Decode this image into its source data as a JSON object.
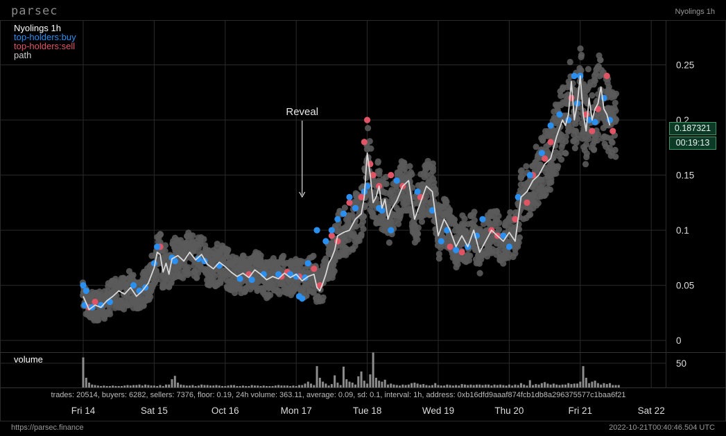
{
  "app": {
    "brand": "parsec",
    "top_right": "Nyolings 1h",
    "footer_url": "https://parsec.finance",
    "footer_timestamp": "2022-10-21T00:40:46.504 UTC"
  },
  "legend": {
    "title": "Nyolings 1h",
    "buy_label": "top-holders:buy",
    "sell_label": "top-holders:sell",
    "path_label": "path"
  },
  "annotation": "Reveal",
  "volume_label": "volume",
  "current_price": "0.187321",
  "countdown": "00:19:13",
  "stats_line": "trades: 20514,  buyers: 6282,  sellers: 7376,  floor: 0.19,  24h volume: 363.11,  average: 0.09,  sd: 0.1,  interval: 1h,  address: 0xb16dfd9aaaf874fcb1db8a296375577c1baa6f21",
  "colors": {
    "background": "#000000",
    "grid": "#2b2b2b",
    "trade_dot": "#5a5a5a",
    "buy": "#2b8ff0",
    "sell": "#e05565",
    "path": "#d9d9d9",
    "volume_bar": "#8c8c8c"
  },
  "chart_data": {
    "type": "scatter",
    "ylim": [
      -0.01,
      0.29
    ],
    "y_ticks": [
      "0",
      "0.05",
      "0.1",
      "0.15",
      "0.2",
      "0.25"
    ],
    "y_tick_values": [
      0,
      0.05,
      0.1,
      0.15,
      0.2,
      0.25
    ],
    "x_ticks": [
      "Fri 14",
      "Sat 15",
      "Oct 16",
      "Mon 17",
      "Tue 18",
      "Wed 19",
      "Thu 20",
      "Fri 21",
      "Sat 22"
    ],
    "x_tick_hours": [
      0,
      24,
      48,
      72,
      96,
      120,
      144,
      168,
      192
    ],
    "annotation_hour": 74,
    "path": {
      "name": "path",
      "hours": [
        0,
        2,
        4,
        6,
        8,
        10,
        12,
        14,
        16,
        18,
        20,
        22,
        24,
        25,
        26,
        27,
        28,
        29,
        30,
        32,
        34,
        36,
        38,
        40,
        42,
        44,
        46,
        48,
        50,
        52,
        54,
        56,
        58,
        60,
        62,
        64,
        66,
        68,
        70,
        72,
        74,
        76,
        78,
        79,
        80,
        81,
        82,
        83,
        84,
        85,
        86,
        88,
        90,
        92,
        94,
        95,
        96,
        97,
        98,
        99,
        100,
        101,
        102,
        103,
        104,
        106,
        108,
        110,
        112,
        114,
        116,
        118,
        120,
        122,
        124,
        126,
        128,
        130,
        132,
        134,
        136,
        138,
        140,
        142,
        144,
        146,
        148,
        150,
        152,
        154,
        156,
        158,
        160,
        162,
        163,
        164,
        165,
        166,
        167,
        168,
        169,
        170,
        171,
        172,
        173,
        174,
        175,
        176,
        177,
        178
      ],
      "values": [
        0.04,
        0.028,
        0.032,
        0.03,
        0.036,
        0.04,
        0.045,
        0.042,
        0.048,
        0.04,
        0.045,
        0.052,
        0.066,
        0.08,
        0.078,
        0.062,
        0.07,
        0.06,
        0.074,
        0.077,
        0.072,
        0.08,
        0.073,
        0.078,
        0.069,
        0.065,
        0.071,
        0.067,
        0.062,
        0.058,
        0.061,
        0.057,
        0.064,
        0.06,
        0.055,
        0.058,
        0.056,
        0.061,
        0.057,
        0.06,
        0.054,
        0.058,
        0.06,
        0.048,
        0.045,
        0.052,
        0.06,
        0.07,
        0.075,
        0.082,
        0.095,
        0.098,
        0.1,
        0.11,
        0.115,
        0.13,
        0.17,
        0.15,
        0.125,
        0.13,
        0.14,
        0.12,
        0.128,
        0.11,
        0.118,
        0.127,
        0.14,
        0.145,
        0.11,
        0.125,
        0.14,
        0.135,
        0.095,
        0.11,
        0.1,
        0.085,
        0.095,
        0.085,
        0.1,
        0.08,
        0.09,
        0.1,
        0.095,
        0.09,
        0.098,
        0.09,
        0.13,
        0.135,
        0.145,
        0.15,
        0.16,
        0.165,
        0.185,
        0.2,
        0.195,
        0.205,
        0.235,
        0.2,
        0.215,
        0.24,
        0.205,
        0.19,
        0.22,
        0.2,
        0.21,
        0.215,
        0.23,
        0.21,
        0.205,
        0.195
      ],
      "y_unit_note": ""
    },
    "buy_points": {
      "name": "top-holders:buy",
      "hours": [
        0,
        0.5,
        1,
        3,
        6,
        9,
        17,
        19,
        21,
        24,
        25,
        30,
        31,
        39,
        41,
        46,
        53,
        57,
        61,
        66,
        70,
        72,
        73,
        74,
        75,
        76,
        79,
        82,
        84,
        86,
        88,
        90,
        92,
        95,
        96,
        100,
        101,
        104,
        106,
        113,
        118,
        121,
        123,
        126,
        130,
        133,
        135,
        142,
        144,
        147,
        151,
        155,
        158,
        161,
        164,
        166,
        167,
        168,
        171,
        173,
        176,
        178
      ],
      "values": [
        0.05,
        0.032,
        0.045,
        0.03,
        0.032,
        0.035,
        0.05,
        0.045,
        0.048,
        0.07,
        0.085,
        0.075,
        0.072,
        0.074,
        0.072,
        0.068,
        0.056,
        0.055,
        0.06,
        0.06,
        0.06,
        0.058,
        0.04,
        0.038,
        0.057,
        0.07,
        0.1,
        0.09,
        0.1,
        0.11,
        0.115,
        0.13,
        0.12,
        0.135,
        0.14,
        0.12,
        0.118,
        0.1,
        0.145,
        0.135,
        0.118,
        0.09,
        0.1,
        0.082,
        0.085,
        0.095,
        0.11,
        0.095,
        0.085,
        0.13,
        0.15,
        0.17,
        0.195,
        0.205,
        0.2,
        0.24,
        0.215,
        0.24,
        0.2,
        0.198,
        0.22,
        0.2
      ]
    },
    "sell_points": {
      "name": "top-holders:sell",
      "hours": [
        2,
        4,
        26,
        56,
        67,
        69,
        73,
        78,
        80,
        84,
        86,
        90,
        92,
        94,
        95,
        96,
        97,
        98,
        100,
        104,
        108,
        114,
        124,
        128,
        138,
        140,
        146,
        150,
        152,
        156,
        158,
        164,
        165,
        170,
        172,
        174,
        177,
        179
      ],
      "values": [
        0.03,
        0.035,
        0.085,
        0.06,
        0.058,
        0.062,
        0.058,
        0.065,
        0.05,
        0.095,
        0.09,
        0.125,
        0.12,
        0.13,
        0.18,
        0.2,
        0.16,
        0.15,
        0.14,
        0.15,
        0.14,
        0.13,
        0.085,
        0.08,
        0.1,
        0.095,
        0.11,
        0.125,
        0.15,
        0.165,
        0.18,
        0.2,
        0.22,
        0.205,
        0.19,
        0.21,
        0.24,
        0.19
      ]
    },
    "volume": {
      "name": "volume",
      "y_ticks": [
        "50"
      ],
      "y_tick_values": [
        50
      ],
      "ylim": [
        0,
        70
      ],
      "hours_step": 1,
      "start_hour": 0,
      "values": [
        62,
        20,
        10,
        6,
        5,
        4,
        3,
        4,
        3,
        3,
        4,
        3,
        3,
        3,
        4,
        5,
        4,
        5,
        5,
        6,
        4,
        6,
        5,
        4,
        4,
        3,
        5,
        3,
        6,
        6,
        17,
        24,
        10,
        6,
        5,
        4,
        4,
        5,
        3,
        4,
        6,
        5,
        5,
        4,
        4,
        5,
        4,
        3,
        3,
        4,
        5,
        5,
        3,
        3,
        4,
        3,
        3,
        5,
        4,
        4,
        3,
        4,
        3,
        3,
        3,
        4,
        5,
        4,
        4,
        4,
        3,
        4,
        3,
        5,
        5,
        8,
        12,
        8,
        5,
        44,
        20,
        12,
        8,
        4,
        7,
        25,
        10,
        5,
        43,
        17,
        12,
        10,
        6,
        23,
        33,
        14,
        8,
        27,
        72,
        20,
        14,
        12,
        16,
        6,
        8,
        6,
        5,
        4,
        6,
        5,
        6,
        9,
        10,
        8,
        6,
        7,
        5,
        4,
        5,
        9,
        5,
        4,
        4,
        6,
        5,
        4,
        5,
        4,
        7,
        6,
        5,
        6,
        5,
        6,
        6,
        5,
        6,
        6,
        4,
        6,
        5,
        6,
        5,
        4,
        6,
        4,
        6,
        5,
        9,
        6,
        4,
        15,
        5,
        7,
        6,
        9,
        11,
        8,
        6,
        8,
        6,
        5,
        6,
        6,
        9,
        7,
        8,
        8,
        12,
        44,
        20,
        9,
        12,
        14,
        9,
        6,
        9,
        7,
        9,
        5,
        5,
        5
      ]
    }
  }
}
